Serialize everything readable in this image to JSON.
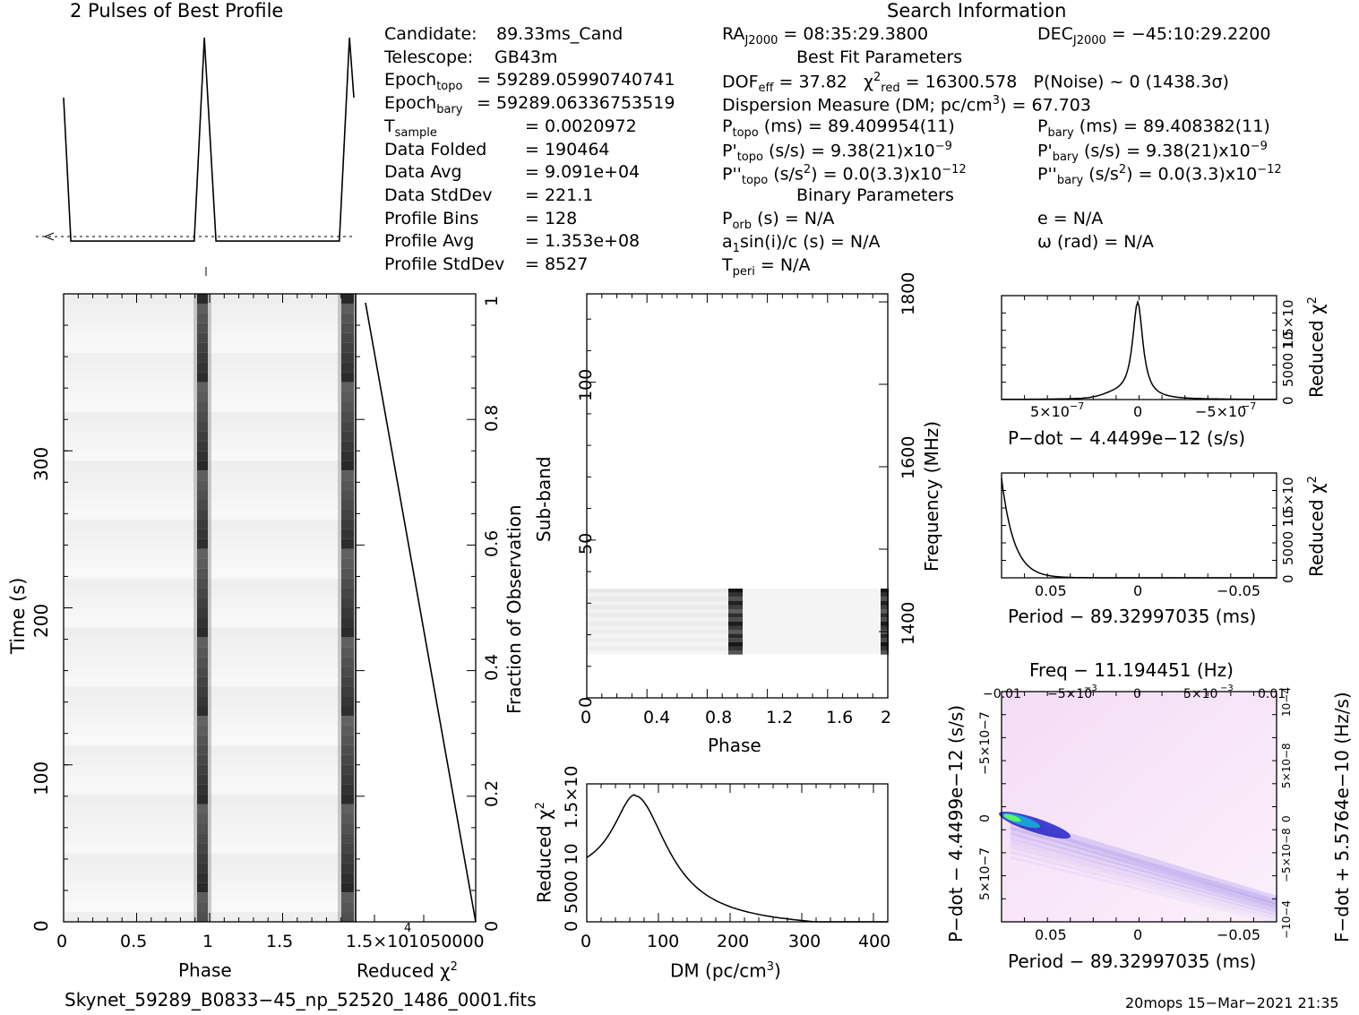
{
  "header": {
    "profile_title": "2 Pulses of Best Profile",
    "search_title": "Search Information",
    "best_fit_title": "Best Fit Parameters",
    "binary_title": "Binary Parameters"
  },
  "info_left": [
    {
      "label": "Candidate:",
      "value": "89.33ms_Cand"
    },
    {
      "label": "Telescope:",
      "value": "GB43m"
    },
    {
      "label": "Epoch",
      "sub": "topo",
      "value": "= 59289.05990740741"
    },
    {
      "label": "Epoch",
      "sub": "bary",
      "value": "= 59289.06336753519"
    },
    {
      "label": "T",
      "sub": "sample",
      "value": "=   0.0020972"
    },
    {
      "label": "Data Folded",
      "value": "=   190464"
    },
    {
      "label": "Data Avg",
      "value": "=   9.091e+04"
    },
    {
      "label": "Data StdDev",
      "value": "=   221.1"
    },
    {
      "label": "Profile Bins",
      "value": "=   128"
    },
    {
      "label": "Profile Avg",
      "value": "=   1.353e+08"
    },
    {
      "label": "Profile StdDev",
      "value": "=   8527"
    }
  ],
  "info_search": {
    "ra_label": "RA",
    "ra_sub": "J2000",
    "ra_value": "= 08:35:29.3800",
    "dec_label": "DEC",
    "dec_sub": "J2000",
    "dec_value": "= −45:10:29.2200"
  },
  "info_bestfit": {
    "dof": "DOF",
    "dof_sub": "eff",
    "dof_value": "= 37.82",
    "chi": "χ",
    "chi_sup": "2",
    "chi_sub": "red",
    "chi_value": "= 16300.578",
    "pnoise": "P(Noise) ~ 0    (1438.3σ)",
    "dm": "Dispersion Measure (DM; pc/cm",
    "dm_sup": "3",
    "dm_value": ") = 67.703",
    "ptopo": "P",
    "ptopo_sub": "topo",
    "ptopo_value": "(ms) =  89.409954(11)",
    "pbary": "P",
    "pbary_sub": "bary",
    "pbary_value": "(ms) =  89.408382(11)",
    "pdtopo": "P'",
    "pdtopo_sub": "topo",
    "pdtopo_value": "(s/s) =  9.38(21)x10",
    "pdtopo_exp": "−9",
    "pdbary": "P'",
    "pdbary_sub": "bary",
    "pdbary_value": "(s/s) =  9.38(21)x10",
    "pdbary_exp": "−9",
    "pddtopo": "P''",
    "pddtopo_sub": "topo",
    "pddtopo_value": "(s/s",
    "pddtopo_sup": "2",
    "pddtopo_rest": ") = 0.0(3.3)x10",
    "pddtopo_exp": "−12",
    "pddbary": "P''",
    "pddbary_sub": "bary",
    "pddbary_value": "(s/s",
    "pddbary_sup": "2",
    "pddbary_rest": ") = 0.0(3.3)x10",
    "pddbary_exp": "−12"
  },
  "info_binary": {
    "porb": "P",
    "porb_sub": "orb",
    "porb_value": "(s) = N/A",
    "asini": "a",
    "asini_sub": "1",
    "asini_value": "sin(i)/c (s) = N/A",
    "tperi": "T",
    "tperi_sub": "peri",
    "tperi_value": "= N/A",
    "e": "e = N/A",
    "omega": "ω (rad) = N/A"
  },
  "footer": {
    "filename": "Skynet_59289_B0833−45_np_52520_1486_0001.fits",
    "stamp": "20mops 15−Mar−2021 21:35"
  },
  "chart_data": [
    {
      "id": "profile",
      "type": "line",
      "title": "2 Pulses of Best Profile",
      "x": "phase 0-2",
      "description_points": [
        [
          0,
          0.72
        ],
        [
          0.05,
          0.05
        ],
        [
          0.9,
          0.05
        ],
        [
          0.97,
          1.0
        ],
        [
          1.05,
          0.05
        ],
        [
          1.9,
          0.05
        ],
        [
          1.97,
          1.0
        ],
        [
          2.0,
          0.72
        ]
      ]
    },
    {
      "id": "time_phase",
      "type": "heatmap",
      "xlabel": "Phase",
      "ylabel": "Time (s)",
      "xticks": [
        "0",
        "0.5",
        "1",
        "1.5"
      ],
      "yticks": [
        "0",
        "100",
        "200",
        "300"
      ],
      "xlim": [
        0,
        2
      ],
      "ylim": [
        0,
        400
      ]
    },
    {
      "id": "time_chi",
      "type": "line",
      "xlabel": "Reduced χ",
      "xlabel_sup": "2",
      "ylabel": "Fraction of Observation",
      "xticks": [
        "1.5×10",
        "4",
        "1050000"
      ],
      "yticks": [
        "0",
        "0.2",
        "0.4",
        "0.6",
        "0.8",
        "1"
      ],
      "x": [
        0,
        16300
      ],
      "y": [
        0,
        1
      ]
    },
    {
      "id": "subband_phase",
      "type": "heatmap",
      "xlabel": "Phase",
      "ylabel": "Sub-band",
      "y2label": "Frequency (MHz)",
      "xticks": [
        "0",
        "0.4",
        "0.8",
        "1.2",
        "1.6",
        "2"
      ],
      "yticks": [
        "0",
        "50",
        "100"
      ],
      "y2ticks": [
        "1400",
        "1600",
        "1800"
      ],
      "xlim": [
        0,
        2
      ],
      "ylim": [
        0,
        128
      ]
    },
    {
      "id": "dm_chi",
      "type": "line",
      "xlabel": "DM (pc/cm",
      "xlabel_sup": "3",
      "xlabel_end": ")",
      "ylabel": "Reduced χ",
      "ylabel_sup": "2",
      "xticks": [
        "0",
        "100",
        "200",
        "300",
        "400"
      ],
      "yticks": [
        "0",
        "5000",
        "10",
        "4",
        "1.5×10",
        "4"
      ],
      "xlim": [
        0,
        420
      ],
      "peak_dm": 67.703
    },
    {
      "id": "pdot_chi",
      "type": "line",
      "xlabel": "P−dot − 4.4499e−12 (s/s)",
      "ylabel": "Reduced χ",
      "ylabel_sup": "2",
      "xticks": [
        "5×10",
        "−7",
        "0",
        "−5×10",
        "−7"
      ],
      "yticks": [
        "0",
        "5000",
        "10",
        "4",
        "1.5×10",
        "4"
      ]
    },
    {
      "id": "period_chi",
      "type": "line",
      "xlabel": "Period − 89.32997035 (ms)",
      "ylabel": "Reduced χ",
      "ylabel_sup": "2",
      "xticks": [
        "0.05",
        "0",
        "−0.05"
      ],
      "yticks": [
        "0",
        "5000",
        "10",
        "4",
        "1.5×10",
        "4"
      ]
    },
    {
      "id": "p_pdot",
      "type": "heatmap",
      "title": "Freq − 11.194451 (Hz)",
      "xlabel": "Period − 89.32997035 (ms)",
      "ylabel": "P−dot − 4.4499e−12 (s/s)",
      "y2label": "F−dot + 5.5764e−10 (Hz/s)",
      "xticks": [
        "0.05",
        "0",
        "−0.05"
      ],
      "x2ticks": [
        "−0.01",
        "−5×10",
        "−3",
        "0",
        "5×10",
        "−3",
        "0.01"
      ],
      "yticks": [
        "5×10",
        "−7",
        "0",
        "−5×10",
        "−7"
      ],
      "y2ticks": [
        "−10",
        "−4",
        "−5×10",
        "−8",
        "0",
        "5×10",
        "−8",
        "10",
        "−4"
      ]
    }
  ]
}
